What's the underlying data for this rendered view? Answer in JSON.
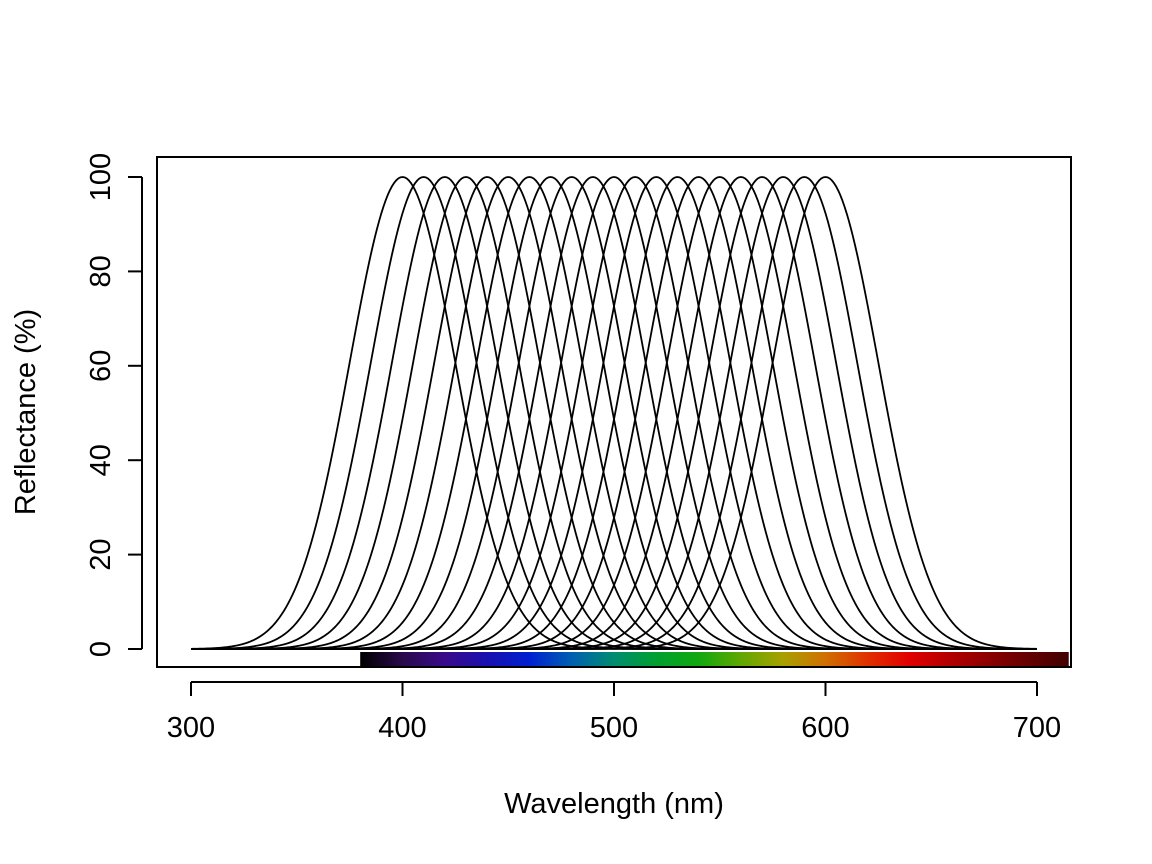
{
  "chart_data": {
    "type": "line",
    "title": "",
    "xlabel": "Wavelength (nm)",
    "ylabel": "Reflectance (%)",
    "xlim": [
      300,
      700
    ],
    "ylim": [
      0,
      100
    ],
    "x_ticks": [
      300,
      400,
      500,
      600,
      700
    ],
    "y_ticks": [
      0,
      20,
      40,
      60,
      80,
      100
    ],
    "x_tick_labels": [
      "300",
      "400",
      "500",
      "600",
      "700"
    ],
    "y_tick_labels": [
      "0",
      "20",
      "40",
      "60",
      "80",
      "100"
    ],
    "grid": false,
    "legend": "none",
    "line_color": "#000000",
    "curve_shape": "gaussian",
    "curve_peak_value": 100,
    "curve_baseline_value": 0,
    "curve_width_sd_nm": 25,
    "series_peaks_nm": [
      400,
      410,
      420,
      430,
      440,
      450,
      460,
      470,
      480,
      490,
      500,
      510,
      520,
      530,
      540,
      550,
      560,
      570,
      580,
      590,
      600
    ],
    "spectrum_bar": {
      "start_nm": 380,
      "end_nm": 715,
      "color_stops": [
        {
          "nm": 380,
          "color": "#000000"
        },
        {
          "nm": 400,
          "color": "#2a0a4a"
        },
        {
          "nm": 420,
          "color": "#3a0a8a"
        },
        {
          "nm": 440,
          "color": "#1a10b0"
        },
        {
          "nm": 460,
          "color": "#0020d0"
        },
        {
          "nm": 480,
          "color": "#0060b0"
        },
        {
          "nm": 500,
          "color": "#008c70"
        },
        {
          "nm": 520,
          "color": "#00a030"
        },
        {
          "nm": 540,
          "color": "#10a810"
        },
        {
          "nm": 560,
          "color": "#60a800"
        },
        {
          "nm": 580,
          "color": "#a8a000"
        },
        {
          "nm": 600,
          "color": "#d07000"
        },
        {
          "nm": 620,
          "color": "#e03000"
        },
        {
          "nm": 640,
          "color": "#e00000"
        },
        {
          "nm": 660,
          "color": "#b00000"
        },
        {
          "nm": 690,
          "color": "#700000"
        },
        {
          "nm": 715,
          "color": "#400000"
        }
      ]
    }
  }
}
